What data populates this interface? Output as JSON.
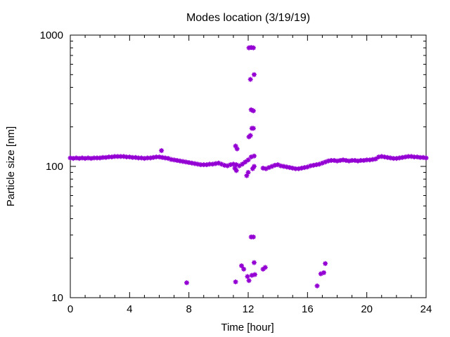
{
  "chart_data": {
    "type": "scatter",
    "title": "Modes location (3/19/19)",
    "xlabel": "Time [hour]",
    "ylabel": "Particle size [nm]",
    "xlim": [
      0,
      24
    ],
    "ylim": [
      10,
      1000
    ],
    "yscale": "log",
    "x_ticks": [
      0,
      4,
      8,
      12,
      16,
      20,
      24
    ],
    "y_ticks": [
      10,
      100,
      1000
    ],
    "x_tick_labels": [
      "0",
      "4",
      "8",
      "12",
      "16",
      "20",
      "24"
    ],
    "y_tick_labels": [
      "10",
      "100",
      "1000"
    ],
    "grid": false,
    "legend": false,
    "marker_color": "#9400d3",
    "baseline_points": [
      [
        0.0,
        116
      ],
      [
        0.2,
        115
      ],
      [
        0.4,
        116
      ],
      [
        0.6,
        115
      ],
      [
        0.8,
        116
      ],
      [
        1.0,
        115
      ],
      [
        1.2,
        116
      ],
      [
        1.4,
        115
      ],
      [
        1.6,
        116
      ],
      [
        1.8,
        116
      ],
      [
        2.0,
        116
      ],
      [
        2.2,
        117
      ],
      [
        2.4,
        117
      ],
      [
        2.6,
        118
      ],
      [
        2.8,
        118
      ],
      [
        3.0,
        119
      ],
      [
        3.2,
        119
      ],
      [
        3.4,
        119
      ],
      [
        3.6,
        119
      ],
      [
        3.8,
        118
      ],
      [
        4.0,
        118
      ],
      [
        4.2,
        117
      ],
      [
        4.4,
        117
      ],
      [
        4.6,
        116
      ],
      [
        4.8,
        116
      ],
      [
        5.0,
        115
      ],
      [
        5.2,
        116
      ],
      [
        5.4,
        116
      ],
      [
        5.6,
        117
      ],
      [
        5.8,
        118
      ],
      [
        6.0,
        118
      ],
      [
        6.2,
        117
      ],
      [
        6.4,
        116
      ],
      [
        6.6,
        115
      ],
      [
        6.8,
        113
      ],
      [
        7.0,
        112
      ],
      [
        7.2,
        111
      ],
      [
        7.4,
        110
      ],
      [
        7.6,
        109
      ],
      [
        7.8,
        108
      ],
      [
        8.0,
        107
      ],
      [
        8.2,
        106
      ],
      [
        8.4,
        105
      ],
      [
        8.6,
        104
      ],
      [
        8.8,
        103
      ],
      [
        9.0,
        103
      ],
      [
        9.2,
        103
      ],
      [
        9.4,
        104
      ],
      [
        9.6,
        104
      ],
      [
        9.8,
        105
      ],
      [
        10.0,
        106
      ],
      [
        10.2,
        104
      ],
      [
        10.4,
        102
      ],
      [
        10.6,
        101
      ],
      [
        10.8,
        103
      ],
      [
        11.0,
        104
      ],
      [
        11.2,
        103
      ],
      [
        11.4,
        101
      ],
      [
        11.6,
        104
      ],
      [
        11.8,
        108
      ],
      [
        12.0,
        112
      ],
      [
        12.2,
        118
      ],
      [
        12.4,
        120
      ],
      [
        13.0,
        97
      ],
      [
        13.2,
        96
      ],
      [
        13.4,
        98
      ],
      [
        13.6,
        100
      ],
      [
        13.8,
        102
      ],
      [
        14.0,
        103
      ],
      [
        14.2,
        101
      ],
      [
        14.4,
        100
      ],
      [
        14.6,
        99
      ],
      [
        14.8,
        98
      ],
      [
        15.0,
        97
      ],
      [
        15.2,
        96
      ],
      [
        15.4,
        96
      ],
      [
        15.6,
        97
      ],
      [
        15.8,
        98
      ],
      [
        16.0,
        99
      ],
      [
        16.2,
        101
      ],
      [
        16.4,
        102
      ],
      [
        16.6,
        103
      ],
      [
        16.8,
        104
      ],
      [
        17.0,
        106
      ],
      [
        17.2,
        108
      ],
      [
        17.4,
        110
      ],
      [
        17.6,
        111
      ],
      [
        17.8,
        111
      ],
      [
        18.0,
        110
      ],
      [
        18.2,
        111
      ],
      [
        18.4,
        112
      ],
      [
        18.6,
        111
      ],
      [
        18.8,
        110
      ],
      [
        19.0,
        111
      ],
      [
        19.2,
        111
      ],
      [
        19.4,
        110
      ],
      [
        19.6,
        111
      ],
      [
        19.8,
        111
      ],
      [
        20.0,
        112
      ],
      [
        20.2,
        112
      ],
      [
        20.4,
        113
      ],
      [
        20.6,
        114
      ],
      [
        20.8,
        118
      ],
      [
        21.0,
        119
      ],
      [
        21.2,
        118
      ],
      [
        21.4,
        117
      ],
      [
        21.6,
        116
      ],
      [
        21.8,
        115
      ],
      [
        22.0,
        115
      ],
      [
        22.2,
        116
      ],
      [
        22.4,
        117
      ],
      [
        22.6,
        118
      ],
      [
        22.8,
        119
      ],
      [
        23.0,
        119
      ],
      [
        23.2,
        118
      ],
      [
        23.4,
        118
      ],
      [
        23.6,
        117
      ],
      [
        23.8,
        117
      ],
      [
        24.0,
        116
      ]
    ],
    "extra_points": [
      [
        6.15,
        132
      ],
      [
        11.15,
        143
      ],
      [
        11.25,
        136
      ],
      [
        11.1,
        97
      ],
      [
        11.2,
        93
      ],
      [
        11.9,
        85
      ],
      [
        12.0,
        90
      ],
      [
        12.3,
        96
      ],
      [
        12.4,
        100
      ],
      [
        12.05,
        168
      ],
      [
        12.15,
        172
      ],
      [
        12.25,
        195
      ],
      [
        12.35,
        195
      ],
      [
        12.2,
        270
      ],
      [
        12.35,
        265
      ],
      [
        12.15,
        460
      ],
      [
        12.4,
        500
      ],
      [
        12.05,
        800
      ],
      [
        12.2,
        805
      ],
      [
        12.35,
        800
      ],
      [
        12.2,
        29
      ],
      [
        12.35,
        29
      ],
      [
        11.55,
        17.5
      ],
      [
        11.7,
        16.5
      ],
      [
        11.95,
        14.5
      ],
      [
        12.05,
        13.5
      ],
      [
        12.25,
        14.8
      ],
      [
        12.45,
        15
      ],
      [
        12.4,
        18.5
      ],
      [
        13.0,
        16.5
      ],
      [
        13.15,
        17
      ],
      [
        7.85,
        13
      ],
      [
        11.15,
        13.2
      ],
      [
        16.65,
        12.3
      ],
      [
        16.9,
        15.2
      ],
      [
        17.1,
        15.5
      ],
      [
        17.2,
        18.2
      ]
    ]
  }
}
